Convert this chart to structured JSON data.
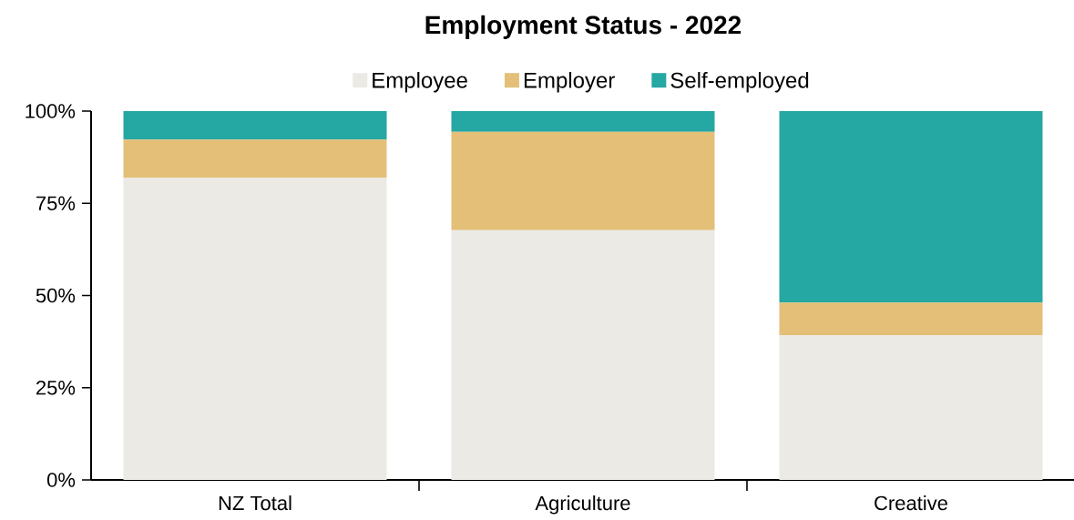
{
  "chart_data": {
    "type": "bar",
    "title": "Employment Status - 2022",
    "stacked": true,
    "legend": "top",
    "grid": false,
    "categories": [
      "NZ Total",
      "Agriculture",
      "Creative"
    ],
    "series": [
      {
        "name": "Employee",
        "color": "#ebeae5",
        "values": [
          82.0,
          67.7,
          39.2
        ]
      },
      {
        "name": "Employer",
        "color": "#e3bf78",
        "values": [
          10.3,
          26.7,
          8.9
        ]
      },
      {
        "name": "Self-employed",
        "color": "#25a7a3",
        "values": [
          7.7,
          5.6,
          51.9
        ]
      }
    ],
    "ylim": [
      0,
      100
    ],
    "yticks": [
      {
        "value": 0,
        "label": "0%"
      },
      {
        "value": 25,
        "label": "25%"
      },
      {
        "value": 50,
        "label": "50%"
      },
      {
        "value": 75,
        "label": "75%"
      },
      {
        "value": 100,
        "label": "100%"
      }
    ]
  }
}
